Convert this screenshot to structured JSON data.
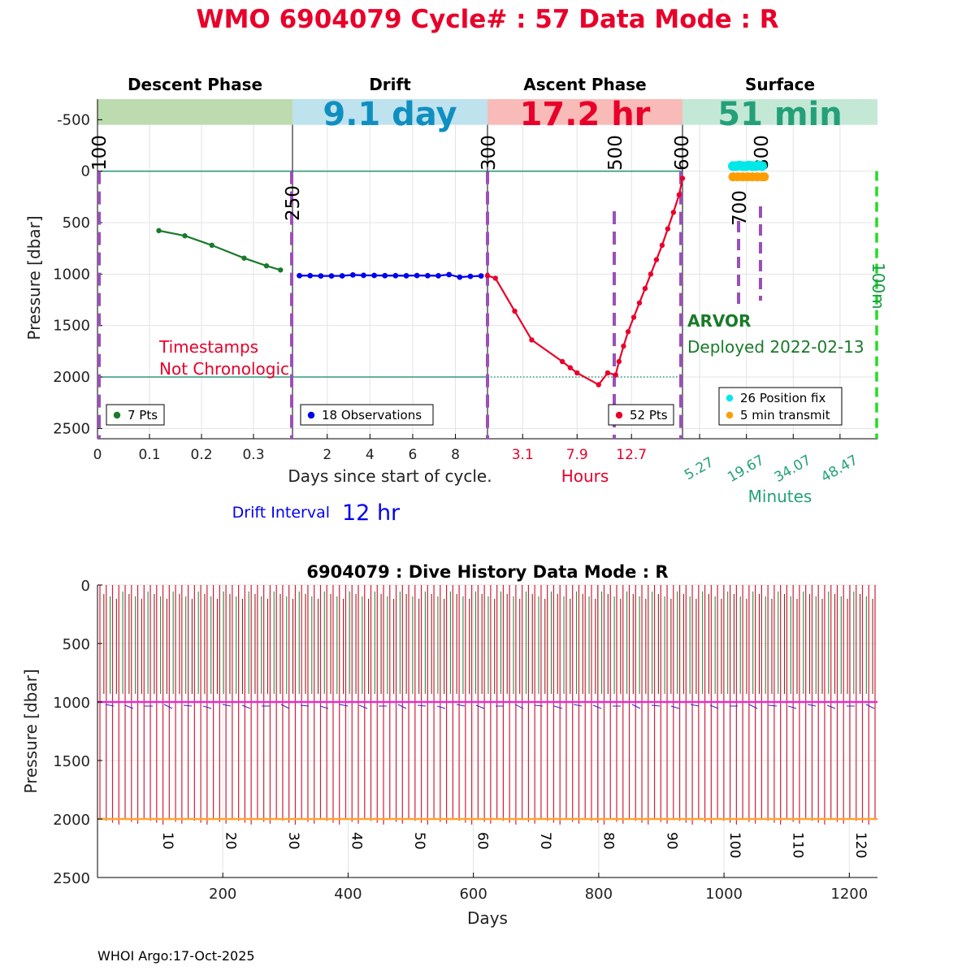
{
  "header": {
    "title": "WMO 6904079   Cycle# : 57   Data Mode : R",
    "title_color": "#e8002a"
  },
  "chart_data": [
    {
      "name": "cycle-profile",
      "type": "line",
      "ylabel": "Pressure [dbar]",
      "ylim": [
        2600,
        -700
      ],
      "yticks": [
        -500,
        0,
        500,
        1000,
        1500,
        2000,
        2500
      ],
      "xlabel": "Days since start of cycle.",
      "grid": true,
      "phases": [
        {
          "title": "Descent Phase",
          "color": "#bcdcb0",
          "duration": ""
        },
        {
          "title": "Drift",
          "color": "#bee2ee",
          "duration": "9.1 day",
          "duration_color": "#0f8fc0"
        },
        {
          "title": "Ascent Phase",
          "color": "#f8bbb8",
          "duration": "17.2 hr",
          "duration_color": "#e8002a"
        },
        {
          "title": "Surface",
          "color": "#c4e8d6",
          "duration": "51 min",
          "duration_color": "#24a078"
        }
      ],
      "descent": {
        "xlim": [
          0,
          0.375
        ],
        "xticks": [
          0,
          0.1,
          0.2,
          0.3
        ],
        "xtick_labels": [
          "0",
          "0.1",
          "0.2",
          "0.3"
        ],
        "series_color": "#1a7a2a",
        "x": [
          0.118,
          0.168,
          0.22,
          0.282,
          0.325,
          0.352
        ],
        "y": [
          578,
          628,
          720,
          845,
          920,
          960
        ],
        "legend": "7 Pts",
        "annotation": [
          "Timestamps",
          "Not Chronologic"
        ],
        "annotation_color": "#e8002a"
      },
      "drift": {
        "xlim": [
          0.375,
          9.5
        ],
        "xticks": [
          2,
          4,
          6,
          8
        ],
        "xtick_labels": [
          "2",
          "4",
          "6",
          "8"
        ],
        "series_color": "#0000ee",
        "x": [
          0.7,
          1.2,
          1.7,
          2.2,
          2.7,
          3.2,
          3.7,
          4.2,
          4.7,
          5.2,
          5.7,
          6.2,
          6.7,
          7.2,
          7.7,
          8.2,
          8.7,
          9.2
        ],
        "y": [
          1015,
          1015,
          1018,
          1018,
          1017,
          1008,
          1012,
          1013,
          1015,
          1015,
          1016,
          1014,
          1015,
          1016,
          1005,
          1030,
          1022,
          1018
        ],
        "legend": "18 Observations"
      },
      "ascent": {
        "xlim": [
          0,
          17.2
        ],
        "xticks": [
          3.1,
          7.9,
          12.7
        ],
        "xtick_labels": [
          "3.1",
          "7.9",
          "12.7"
        ],
        "xlabel": "Hours",
        "xlabel_color": "#e8002a",
        "series_color": "#e8002a",
        "x": [
          0,
          0.7,
          2.4,
          3.9,
          6.6,
          7.3,
          7.9,
          9.8,
          10.6,
          11.3,
          11.6,
          12.0,
          12.4,
          12.9,
          13.4,
          13.9,
          14.4,
          14.9,
          15.4,
          15.9,
          16.4,
          16.9,
          17.2
        ],
        "y": [
          1015,
          1040,
          1360,
          1640,
          1850,
          1910,
          1960,
          2075,
          1960,
          1980,
          1850,
          1700,
          1560,
          1420,
          1280,
          1140,
          1000,
          860,
          720,
          560,
          400,
          230,
          70
        ],
        "legend": "52 Pts"
      },
      "surface": {
        "xlim": [
          0,
          60
        ],
        "xticks": [
          5.27,
          19.67,
          34.07,
          48.47
        ],
        "xtick_labels": [
          "5.27",
          "19.67",
          "34.07",
          "48.47"
        ],
        "xlabel": "Minutes",
        "xlabel_color": "#24a078",
        "position_fix_color": "#00e8e8",
        "transmit_color": "#ff9d00",
        "position_fix_x": [
          15.5,
          16.5,
          17.5,
          18.5,
          19.5,
          20.5,
          21.5,
          22.5,
          23.5,
          24.5
        ],
        "position_fix_y": [
          -50,
          -50,
          -55,
          -50,
          -50,
          -55,
          -50,
          -50,
          -55,
          -50
        ],
        "transmit_x": [
          15.5,
          17.0,
          18.5,
          20.0,
          21.5,
          23.0,
          24.5,
          25.2
        ],
        "transmit_y": [
          55,
          55,
          55,
          55,
          55,
          55,
          55,
          55
        ],
        "legend_position_fix": "26 Position fix",
        "legend_transmit": "5 min transmit",
        "float_type": "ARVOR",
        "deployed": "Deployed 2022-02-13",
        "float_type_color": "#1a7a2a"
      },
      "vertical_markers": [
        {
          "label": "100",
          "color": "#9b4fb8"
        },
        {
          "label": "250",
          "color": "#9b4fb8"
        },
        {
          "label": "300",
          "color": "#9b4fb8"
        },
        {
          "label": "500",
          "color": "#9b4fb8"
        },
        {
          "label": "600",
          "color": "#9b4fb8"
        },
        {
          "label": "700",
          "color": "#9b4fb8"
        },
        {
          "label": "800",
          "color": "#9b4fb8"
        },
        {
          "label": "100m",
          "color": "#22dd22"
        }
      ],
      "drift_interval_label": "Drift Interval",
      "drift_interval_value": "12 hr",
      "drift_interval_color": "#0000ee"
    },
    {
      "name": "dive-history",
      "type": "line",
      "title": "6904079 : Dive History      Data Mode : R",
      "xlabel": "Days",
      "ylabel": "Pressure [dbar]",
      "xlim": [
        0,
        1245
      ],
      "ylim": [
        2500,
        0
      ],
      "xticks": [
        200,
        400,
        600,
        800,
        1000,
        1200
      ],
      "yticks": [
        0,
        500,
        1000,
        1500,
        2000,
        2500
      ],
      "grid": true,
      "cycles": 124,
      "cycle_interval_days": 10,
      "cycle_labels": [
        "10",
        "20",
        "30",
        "40",
        "50",
        "60",
        "70",
        "80",
        "90",
        "100",
        "110",
        "120"
      ],
      "park_pressure": 1000,
      "profile_pressure": 2000,
      "profile_color": "#d21e3a",
      "park_color": "#e030d0",
      "max_pressure_color": "#ffa430",
      "descent_color_a": "#2e8b3c",
      "descent_color_b": "#8b2a1a"
    }
  ],
  "footer": {
    "credit": "WHOI Argo:17-Oct-2025"
  }
}
